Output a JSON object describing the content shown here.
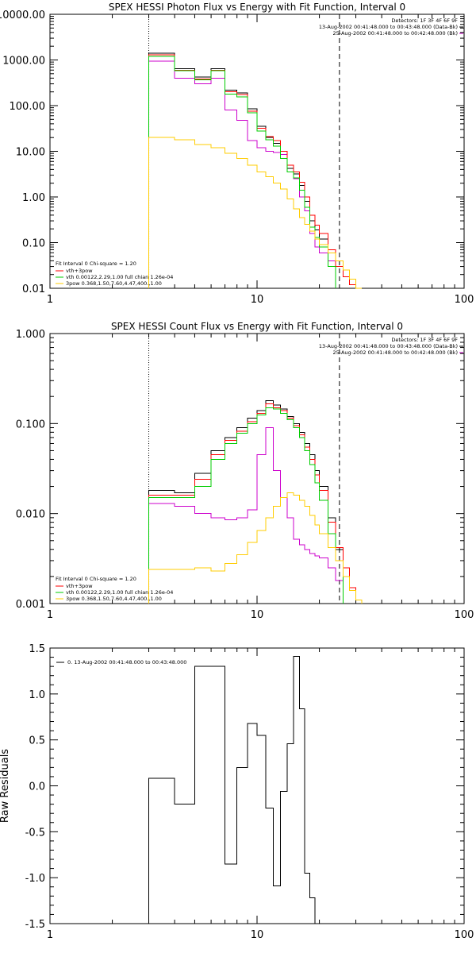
{
  "chart_data": [
    {
      "type": "line",
      "title": "SPEX HESSI Photon Flux vs Energy with Fit Function, Interval 0",
      "xlabel": "",
      "ylabel": "",
      "xscale": "log",
      "yscale": "log",
      "xlim": [
        1,
        100
      ],
      "ylim": [
        0.01,
        10000
      ],
      "xticks": [
        "1",
        "10",
        "100"
      ],
      "yticks": [
        "0.01",
        "0.10",
        "1.00",
        "10.00",
        "100.00",
        "1000.00",
        "10000.00"
      ],
      "vlines": [
        {
          "x": 3,
          "style": "dotted"
        },
        {
          "x": 25,
          "style": "dashed"
        }
      ],
      "header_lines": [
        "Detectors: 1F 3F 4F 6F 9F",
        "13-Aug-2002 00:41:48.000 to 00:43:48.000 (Data-Bk)",
        "25-Aug-2002 00:41:48.000 to 00:42:48.000 (Bk)"
      ],
      "header_line_colors": [
        "",
        "#000000",
        "#cc00cc"
      ],
      "fit_header": "Fit Interval  0   Chi-square = 1.20",
      "legend_position": "bottom-left",
      "legend": [
        {
          "label": "vth+3pow",
          "color": "#ff0000"
        },
        {
          "label": "vth 0.00122,2.29,1.00  full chian 1.26e-04",
          "color": "#00cc00"
        },
        {
          "label": "3pow  0.368,1.50,7.60,4.47,400.,1.00",
          "color": "#ffcc00"
        }
      ],
      "x_edges": [
        3,
        4,
        5,
        6,
        7,
        8,
        9,
        10,
        11,
        12,
        13,
        14,
        15,
        16,
        17,
        18,
        19,
        20,
        22,
        24,
        26,
        28,
        30,
        32,
        35
      ],
      "series": [
        {
          "color": "#000000",
          "values": [
            1400,
            650,
            420,
            650,
            220,
            190,
            85,
            35,
            20,
            15,
            8.5,
            4.2,
            3.2,
            1.8,
            0.8,
            0.3,
            0.19,
            0.12,
            0.04,
            null,
            null,
            null,
            null,
            null
          ]
        },
        {
          "color": "#cc00cc",
          "values": [
            950,
            400,
            300,
            400,
            80,
            48,
            17,
            12,
            10,
            9.5,
            8.5,
            5.0,
            2.5,
            1.0,
            0.5,
            0.16,
            0.08,
            0.06,
            0.04,
            null,
            null,
            null,
            null,
            null
          ]
        },
        {
          "color": "#ff0000",
          "values": [
            1300,
            600,
            380,
            600,
            200,
            175,
            75,
            32,
            21,
            17,
            10,
            5.0,
            3.5,
            2.1,
            1.0,
            0.4,
            0.24,
            0.16,
            0.07,
            0.03,
            0.018,
            0.012,
            0.01,
            null
          ]
        },
        {
          "color": "#00cc00",
          "values": [
            1200,
            580,
            370,
            580,
            180,
            155,
            70,
            28,
            18,
            13,
            7.0,
            3.5,
            2.6,
            1.4,
            0.6,
            0.22,
            0.13,
            0.08,
            0.03,
            null,
            null,
            null,
            null,
            null
          ]
        },
        {
          "color": "#ffcc00",
          "values": [
            20,
            18,
            14,
            12,
            9,
            7,
            5,
            3.5,
            2.8,
            2.0,
            1.5,
            0.9,
            0.55,
            0.35,
            0.25,
            0.18,
            0.12,
            0.09,
            0.06,
            0.04,
            0.025,
            0.016,
            0.01,
            null
          ]
        }
      ]
    },
    {
      "type": "line",
      "title": "SPEX HESSI Count Flux vs Energy with Fit Function, Interval 0",
      "xlabel": "",
      "ylabel": "",
      "xscale": "log",
      "yscale": "log",
      "xlim": [
        1,
        100
      ],
      "ylim": [
        0.001,
        1
      ],
      "xticks": [
        "1",
        "10",
        "100"
      ],
      "yticks": [
        "0.001",
        "0.010",
        "0.100",
        "1.000"
      ],
      "vlines": [
        {
          "x": 3,
          "style": "dotted"
        },
        {
          "x": 25,
          "style": "dashed"
        }
      ],
      "header_lines": [
        "Detectors: 1F 3F 4F 6F 9F",
        "13-Aug-2002 00:41:48.000 to 00:43:48.000 (Data-Bk)",
        "25-Aug-2002 00:41:48.000 to 00:42:48.000 (Bk)"
      ],
      "header_line_colors": [
        "",
        "#000000",
        "#cc00cc"
      ],
      "fit_header": "Fit Interval  0   Chi-square = 1.20",
      "legend_position": "bottom-left",
      "legend": [
        {
          "label": "vth+3pow",
          "color": "#ff0000"
        },
        {
          "label": "vth 0.00122,2.29,1.00  full chian 1.26e-04",
          "color": "#00cc00"
        },
        {
          "label": "3pow  0.368,1.50,7.60,4.47,400.,1.00",
          "color": "#ffcc00"
        }
      ],
      "x_edges": [
        3,
        4,
        5,
        6,
        7,
        8,
        9,
        10,
        11,
        12,
        13,
        14,
        15,
        16,
        17,
        18,
        19,
        20,
        22,
        24,
        26,
        28,
        30,
        32,
        35
      ],
      "series": [
        {
          "color": "#000000",
          "values": [
            0.018,
            0.017,
            0.028,
            0.05,
            0.07,
            0.09,
            0.115,
            0.14,
            0.18,
            0.16,
            0.145,
            0.12,
            0.1,
            0.08,
            0.06,
            0.045,
            0.03,
            0.02,
            0.009,
            0.004,
            null,
            null,
            null,
            null
          ]
        },
        {
          "color": "#cc00cc",
          "values": [
            0.013,
            0.012,
            0.01,
            0.009,
            0.0085,
            0.009,
            0.011,
            0.045,
            0.09,
            0.03,
            0.015,
            0.009,
            0.0052,
            0.0045,
            0.004,
            0.0036,
            0.0034,
            0.0032,
            0.0025,
            0.0018,
            null,
            null,
            null,
            null
          ]
        },
        {
          "color": "#ff0000",
          "values": [
            0.016,
            0.016,
            0.024,
            0.045,
            0.065,
            0.082,
            0.105,
            0.13,
            0.165,
            0.15,
            0.14,
            0.115,
            0.095,
            0.075,
            0.055,
            0.04,
            0.027,
            0.018,
            0.008,
            0.0042,
            0.0025,
            0.0015,
            0.0011,
            null
          ]
        },
        {
          "color": "#00cc00",
          "values": [
            0.015,
            0.015,
            0.02,
            0.04,
            0.06,
            0.078,
            0.1,
            0.125,
            0.15,
            0.145,
            0.13,
            0.11,
            0.09,
            0.07,
            0.05,
            0.035,
            0.022,
            0.014,
            0.006,
            0.003,
            null,
            null,
            null,
            null
          ]
        },
        {
          "color": "#ffcc00",
          "values": [
            0.0024,
            0.0024,
            0.0025,
            0.0023,
            0.0028,
            0.0035,
            0.0048,
            0.0065,
            0.009,
            0.012,
            0.015,
            0.017,
            0.016,
            0.014,
            0.012,
            0.0095,
            0.0075,
            0.006,
            0.0042,
            0.003,
            0.002,
            0.0014,
            0.0011,
            null
          ]
        }
      ]
    },
    {
      "type": "line",
      "title": "",
      "xlabel": "",
      "ylabel": "Raw Residuals",
      "xscale": "log",
      "yscale": "linear",
      "xlim": [
        1,
        100
      ],
      "ylim": [
        -1.5,
        1.5
      ],
      "xticks": [
        "1",
        "10",
        "100"
      ],
      "yticks": [
        "-1.5",
        "-1.0",
        "-0.5",
        "0.0",
        "0.5",
        "1.0",
        "1.5"
      ],
      "legend_position": "top-left",
      "legend": [
        {
          "label": "0. 13-Aug-2002 00:41:48.000 to 00:43:48.000",
          "color": "#000000"
        }
      ],
      "x_edges": [
        3,
        4,
        5,
        6,
        7,
        8,
        9,
        10,
        11,
        12,
        13,
        14,
        15,
        16,
        17,
        18,
        19,
        20,
        22,
        24,
        26
      ],
      "series": [
        {
          "color": "#000000",
          "values": [
            0.08,
            -0.2,
            1.3,
            1.3,
            -0.85,
            0.2,
            0.68,
            0.55,
            -0.24,
            -1.09,
            -0.06,
            0.46,
            1.41,
            0.84,
            -0.95,
            -1.22,
            -1.5,
            -1.5,
            -1.5,
            -1.5
          ]
        }
      ]
    }
  ]
}
